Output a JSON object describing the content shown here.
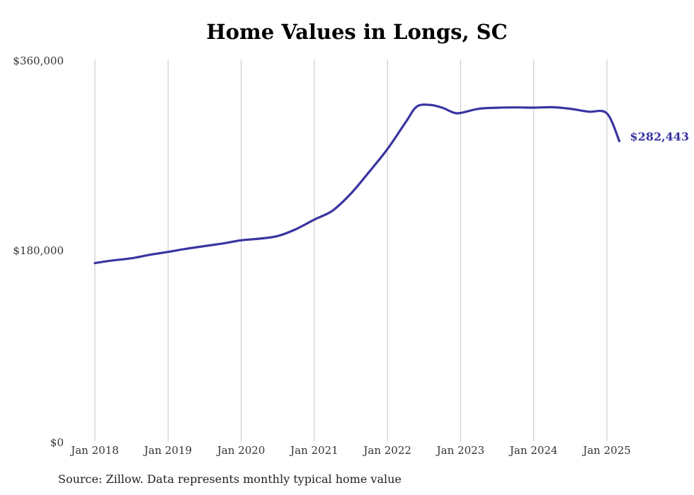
{
  "chart_data": {
    "type": "line",
    "title": "Home Values in Longs, SC",
    "xlabel": "",
    "ylabel": "",
    "ylim": [
      0,
      360000
    ],
    "y_ticks": [
      "$0",
      "$180,000",
      "$360,000"
    ],
    "y_tick_values": [
      0,
      180000,
      360000
    ],
    "x_ticks": [
      "Jan 2018",
      "Jan 2019",
      "Jan 2020",
      "Jan 2021",
      "Jan 2022",
      "Jan 2023",
      "Jan 2024",
      "Jan 2025"
    ],
    "x_tick_values": [
      2018,
      2019,
      2020,
      2021,
      2022,
      2023,
      2024,
      2025
    ],
    "xlim": [
      2018,
      2025.25
    ],
    "grid": "vertical",
    "series": [
      {
        "color": "#3a35a0",
        "points": [
          [
            2018.0,
            168000
          ],
          [
            2018.25,
            170500
          ],
          [
            2018.5,
            172500
          ],
          [
            2018.75,
            175800
          ],
          [
            2019.0,
            178500
          ],
          [
            2019.25,
            181500
          ],
          [
            2019.5,
            184000
          ],
          [
            2019.75,
            186500
          ],
          [
            2020.0,
            189500
          ],
          [
            2020.25,
            191000
          ],
          [
            2020.5,
            193500
          ],
          [
            2020.75,
            200000
          ],
          [
            2021.0,
            209000
          ],
          [
            2021.25,
            217500
          ],
          [
            2021.5,
            233500
          ],
          [
            2021.75,
            254000
          ],
          [
            2022.0,
            275500
          ],
          [
            2022.25,
            301000
          ],
          [
            2022.4,
            315500
          ],
          [
            2022.58,
            317200
          ],
          [
            2022.75,
            314500
          ],
          [
            2022.9,
            310000
          ],
          [
            2023.0,
            309600
          ],
          [
            2023.25,
            313500
          ],
          [
            2023.5,
            314500
          ],
          [
            2023.75,
            314800
          ],
          [
            2024.0,
            314600
          ],
          [
            2024.25,
            315000
          ],
          [
            2024.5,
            313500
          ],
          [
            2024.75,
            310800
          ],
          [
            2025.0,
            309200
          ],
          [
            2025.17,
            283000
          ]
        ],
        "end_label": "$282,443"
      }
    ]
  },
  "source_note": "Source: Zillow. Data represents monthly typical home value"
}
